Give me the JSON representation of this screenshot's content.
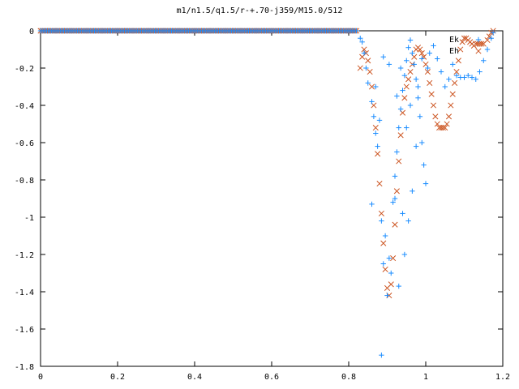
{
  "chart_data": {
    "type": "scatter",
    "title": "m1/n1.5/q1.5/r-+.70-j359/M15.0/512",
    "xlabel": "",
    "ylabel": "",
    "xlim": [
      0,
      1.2
    ],
    "ylim": [
      -1.8,
      0
    ],
    "xticks": [
      "0",
      "0.2",
      "0.4",
      "0.6",
      "0.8",
      "1",
      "1.2"
    ],
    "yticks": [
      "0",
      "-0.2",
      "-0.4",
      "-0.6",
      "-0.8",
      "-1",
      "-1.2",
      "-1.4",
      "-1.6",
      "-1.8"
    ],
    "grid": false,
    "legend_position": "top-right",
    "series": [
      {
        "name": "Ek",
        "marker": "plus",
        "color": "#1a8cff",
        "points": [
          [
            0.83,
            -0.04
          ],
          [
            0.835,
            -0.06
          ],
          [
            0.84,
            -0.12
          ],
          [
            0.845,
            -0.2
          ],
          [
            0.85,
            -0.28
          ],
          [
            0.86,
            -0.38
          ],
          [
            0.865,
            -0.46
          ],
          [
            0.87,
            -0.55
          ],
          [
            0.875,
            -0.62
          ],
          [
            0.88,
            -0.48
          ],
          [
            0.885,
            -1.02
          ],
          [
            0.89,
            -1.25
          ],
          [
            0.895,
            -1.1
          ],
          [
            0.9,
            -1.42
          ],
          [
            0.905,
            -1.22
          ],
          [
            0.91,
            -1.3
          ],
          [
            0.915,
            -0.92
          ],
          [
            0.92,
            -0.78
          ],
          [
            0.925,
            -0.65
          ],
          [
            0.93,
            -0.52
          ],
          [
            0.935,
            -0.42
          ],
          [
            0.94,
            -0.32
          ],
          [
            0.945,
            -0.24
          ],
          [
            0.95,
            -0.16
          ],
          [
            0.955,
            -0.09
          ],
          [
            0.96,
            -0.05
          ],
          [
            0.965,
            -0.12
          ],
          [
            0.97,
            -0.18
          ],
          [
            0.975,
            -0.26
          ],
          [
            0.98,
            -0.36
          ],
          [
            0.985,
            -0.46
          ],
          [
            0.99,
            -0.6
          ],
          [
            0.995,
            -0.72
          ],
          [
            1.0,
            -0.82
          ],
          [
            1.005,
            -0.2
          ],
          [
            1.01,
            -0.12
          ],
          [
            1.02,
            -0.08
          ],
          [
            1.03,
            -0.15
          ],
          [
            1.04,
            -0.22
          ],
          [
            1.05,
            -0.3
          ],
          [
            1.06,
            -0.26
          ],
          [
            1.07,
            -0.18
          ],
          [
            1.08,
            -0.24
          ],
          [
            1.09,
            -0.25
          ],
          [
            1.1,
            -0.25
          ],
          [
            1.11,
            -0.24
          ],
          [
            1.12,
            -0.25
          ],
          [
            1.13,
            -0.26
          ],
          [
            1.14,
            -0.22
          ],
          [
            1.15,
            -0.16
          ],
          [
            1.16,
            -0.1
          ],
          [
            1.17,
            -0.04
          ],
          [
            1.175,
            -0.01
          ],
          [
            0.885,
            -1.74
          ],
          [
            0.86,
            -0.93
          ],
          [
            0.92,
            -0.9
          ],
          [
            0.94,
            -0.98
          ],
          [
            0.975,
            -0.62
          ],
          [
            0.96,
            -0.4
          ],
          [
            0.98,
            -0.3
          ],
          [
            0.95,
            -0.52
          ],
          [
            0.99,
            -0.15
          ],
          [
            0.905,
            -0.18
          ],
          [
            0.925,
            -0.35
          ],
          [
            0.87,
            -0.3
          ],
          [
            0.89,
            -0.14
          ],
          [
            0.935,
            -0.2
          ],
          [
            0.93,
            -1.37
          ],
          [
            0.965,
            -0.86
          ],
          [
            0.955,
            -1.02
          ],
          [
            0.945,
            -1.2
          ]
        ]
      },
      {
        "name": "Eh",
        "marker": "cross",
        "color": "#cc5522",
        "points": [
          [
            0.83,
            -0.2
          ],
          [
            0.835,
            -0.14
          ],
          [
            0.84,
            -0.1
          ],
          [
            0.845,
            -0.12
          ],
          [
            0.85,
            -0.16
          ],
          [
            0.855,
            -0.22
          ],
          [
            0.86,
            -0.3
          ],
          [
            0.865,
            -0.4
          ],
          [
            0.87,
            -0.52
          ],
          [
            0.875,
            -0.66
          ],
          [
            0.88,
            -0.82
          ],
          [
            0.885,
            -0.98
          ],
          [
            0.89,
            -1.14
          ],
          [
            0.895,
            -1.28
          ],
          [
            0.9,
            -1.38
          ],
          [
            0.905,
            -1.42
          ],
          [
            0.91,
            -1.36
          ],
          [
            0.915,
            -1.22
          ],
          [
            0.92,
            -1.04
          ],
          [
            0.925,
            -0.86
          ],
          [
            0.93,
            -0.7
          ],
          [
            0.935,
            -0.56
          ],
          [
            0.94,
            -0.44
          ],
          [
            0.945,
            -0.36
          ],
          [
            0.95,
            -0.3
          ],
          [
            0.955,
            -0.26
          ],
          [
            0.96,
            -0.22
          ],
          [
            0.965,
            -0.18
          ],
          [
            0.97,
            -0.14
          ],
          [
            0.975,
            -0.1
          ],
          [
            0.98,
            -0.09
          ],
          [
            0.985,
            -0.1
          ],
          [
            0.99,
            -0.12
          ],
          [
            0.995,
            -0.14
          ],
          [
            1.0,
            -0.18
          ],
          [
            1.005,
            -0.22
          ],
          [
            1.01,
            -0.28
          ],
          [
            1.015,
            -0.34
          ],
          [
            1.02,
            -0.4
          ],
          [
            1.025,
            -0.46
          ],
          [
            1.03,
            -0.5
          ],
          [
            1.035,
            -0.52
          ],
          [
            1.04,
            -0.52
          ],
          [
            1.045,
            -0.52
          ],
          [
            1.05,
            -0.52
          ],
          [
            1.055,
            -0.5
          ],
          [
            1.06,
            -0.46
          ],
          [
            1.065,
            -0.4
          ],
          [
            1.07,
            -0.34
          ],
          [
            1.075,
            -0.28
          ],
          [
            1.08,
            -0.22
          ],
          [
            1.085,
            -0.16
          ],
          [
            1.09,
            -0.1
          ],
          [
            1.095,
            -0.06
          ],
          [
            1.1,
            -0.04
          ],
          [
            1.105,
            -0.04
          ],
          [
            1.11,
            -0.05
          ],
          [
            1.115,
            -0.06
          ],
          [
            1.12,
            -0.07
          ],
          [
            1.125,
            -0.08
          ],
          [
            1.13,
            -0.07
          ],
          [
            1.135,
            -0.07
          ],
          [
            1.14,
            -0.07
          ],
          [
            1.145,
            -0.07
          ],
          [
            1.15,
            -0.07
          ],
          [
            1.16,
            -0.05
          ],
          [
            1.165,
            -0.03
          ],
          [
            1.17,
            -0.01
          ],
          [
            1.175,
            0.0
          ]
        ]
      }
    ],
    "flat_segment": {
      "series": "both",
      "x_from": 0.0,
      "x_to": 0.82,
      "y": 0.0
    }
  }
}
